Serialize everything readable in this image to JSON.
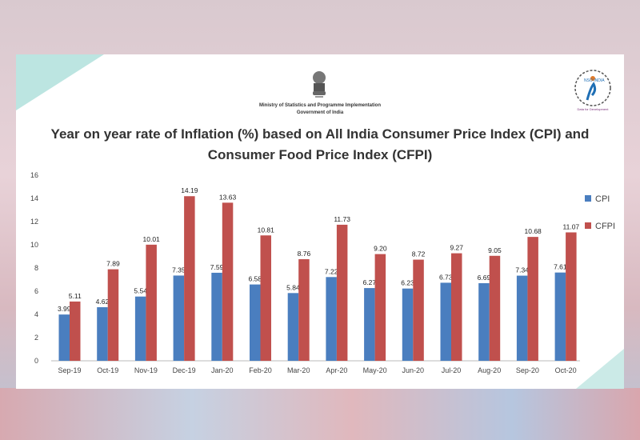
{
  "header": {
    "ministry": "Ministry of Statistics and Programme Implementation",
    "government": "Government of India",
    "logo_text": "NSO INDIA",
    "logo_tagline": "Data for Development"
  },
  "chart_data": {
    "type": "bar",
    "title_line1": "Year on year rate of Inflation (%) based on All India Consumer Price Index (CPI) and",
    "title_line2": "Consumer Food Price Index (CFPI)",
    "xlabel": "",
    "ylabel": "",
    "ylim": [
      0,
      16
    ],
    "yticks": [
      "0",
      "2",
      "4",
      "6",
      "8",
      "10",
      "12",
      "14",
      "16"
    ],
    "grid": false,
    "legend_position": "right",
    "categories": [
      "Sep-19",
      "Oct-19",
      "Nov-19",
      "Dec-19",
      "Jan-20",
      "Feb-20",
      "Mar-20",
      "Apr-20",
      "May-20",
      "Jun-20",
      "Jul-20",
      "Aug-20",
      "Sep-20",
      "Oct-20"
    ],
    "series": [
      {
        "name": "CPI",
        "color": "#4a7ebf",
        "values": [
          3.99,
          4.62,
          5.54,
          7.35,
          7.59,
          6.58,
          5.84,
          7.22,
          6.27,
          6.23,
          6.73,
          6.69,
          7.34,
          7.61
        ],
        "labels": [
          "3.99",
          "4.62",
          "5.54",
          "7.35",
          "7.59",
          "6.58",
          "5.84",
          "7.22",
          "6.27",
          "6.23",
          "6.73",
          "6.69",
          "7.34",
          "7.61"
        ]
      },
      {
        "name": "CFPI",
        "color": "#c0504d",
        "values": [
          5.11,
          7.89,
          10.01,
          14.19,
          13.63,
          10.81,
          8.76,
          11.73,
          9.2,
          8.72,
          9.27,
          9.05,
          10.68,
          11.07
        ],
        "labels": [
          "5.11",
          "7.89",
          "10.01",
          "14.19",
          "13.63",
          "10.81",
          "8.76",
          "11.73",
          "9.20",
          "8.72",
          "9.27",
          "9.05",
          "10.68",
          "11.07"
        ]
      }
    ]
  }
}
